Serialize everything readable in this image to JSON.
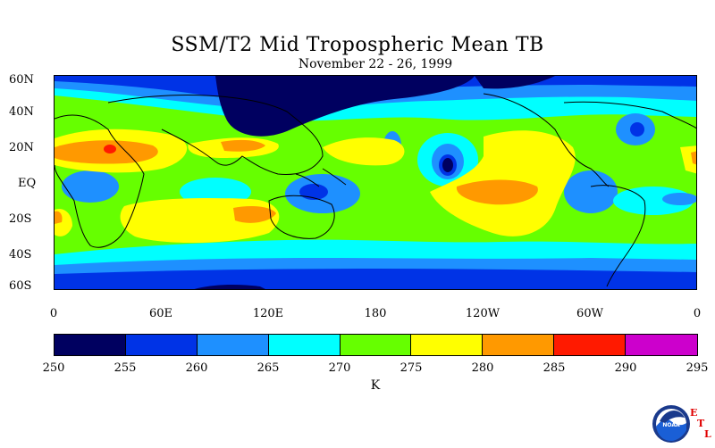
{
  "title": "SSM/T2 Mid Tropospheric Mean TB",
  "subtitle": "November 22 - 26, 1999",
  "map": {
    "lat_labels": [
      "60N",
      "40N",
      "20N",
      "EQ",
      "20S",
      "40S",
      "60S"
    ],
    "lon_labels": [
      "0",
      "60E",
      "120E",
      "180",
      "120W",
      "60W",
      "0"
    ]
  },
  "colorbar": {
    "ticks": [
      "250",
      "255",
      "260",
      "265",
      "270",
      "275",
      "280",
      "285",
      "290",
      "295"
    ],
    "unit": "K",
    "colors": [
      "#000060",
      "#0033e6",
      "#1e90ff",
      "#00ffff",
      "#66ff00",
      "#ffff00",
      "#ff9900",
      "#ff1a00",
      "#cc00cc"
    ]
  },
  "logo": {
    "name": "NOAA",
    "letters": [
      "E",
      "T",
      "L"
    ]
  }
}
